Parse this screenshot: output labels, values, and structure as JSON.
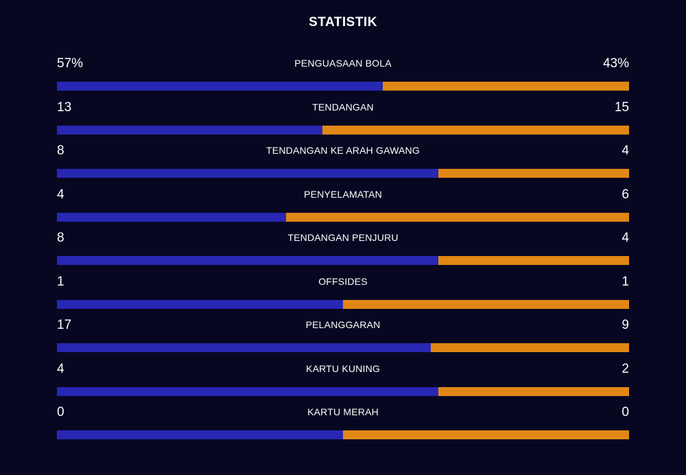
{
  "title": "STATISTIK",
  "colors": {
    "background": "#070722",
    "home": "#2727b3",
    "away": "#e18715",
    "text": "#ffffff"
  },
  "stats": [
    {
      "label": "PENGUASAAN BOLA",
      "home": "57%",
      "away": "43%",
      "home_value": 57,
      "away_value": 43
    },
    {
      "label": "TENDANGAN",
      "home": "13",
      "away": "15",
      "home_value": 13,
      "away_value": 15
    },
    {
      "label": "TENDANGAN KE ARAH GAWANG",
      "home": "8",
      "away": "4",
      "home_value": 8,
      "away_value": 4
    },
    {
      "label": "PENYELAMATAN",
      "home": "4",
      "away": "6",
      "home_value": 4,
      "away_value": 6
    },
    {
      "label": "TENDANGAN PENJURU",
      "home": "8",
      "away": "4",
      "home_value": 8,
      "away_value": 4
    },
    {
      "label": "OFFSIDES",
      "home": "1",
      "away": "1",
      "home_value": 1,
      "away_value": 1
    },
    {
      "label": "PELANGGARAN",
      "home": "17",
      "away": "9",
      "home_value": 17,
      "away_value": 9
    },
    {
      "label": "KARTU KUNING",
      "home": "4",
      "away": "2",
      "home_value": 4,
      "away_value": 2
    },
    {
      "label": "KARTU MERAH",
      "home": "0",
      "away": "0",
      "home_value": 0,
      "away_value": 0
    }
  ]
}
